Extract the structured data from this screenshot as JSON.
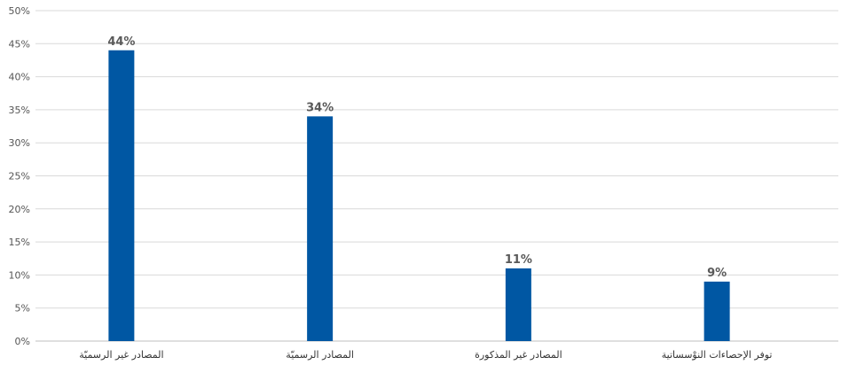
{
  "chart_data": {
    "type": "bar",
    "categories": [
      "المصادر غير الرسميّة",
      "المصادر الرسميّة",
      "المصادر غير المذكورة",
      "توفر الإحصاءات النوْسساتية"
    ],
    "values": [
      44,
      34,
      11,
      9
    ],
    "value_labels": [
      "44%",
      "34%",
      "11%",
      "9%"
    ],
    "y_ticks": [
      "0%",
      "5%",
      "10%",
      "15%",
      "20%",
      "25%",
      "30%",
      "35%",
      "40%",
      "45%",
      "50%"
    ],
    "ylim": [
      0,
      50
    ],
    "grid": true,
    "legend": "none",
    "bar_color": "#0057a3"
  }
}
